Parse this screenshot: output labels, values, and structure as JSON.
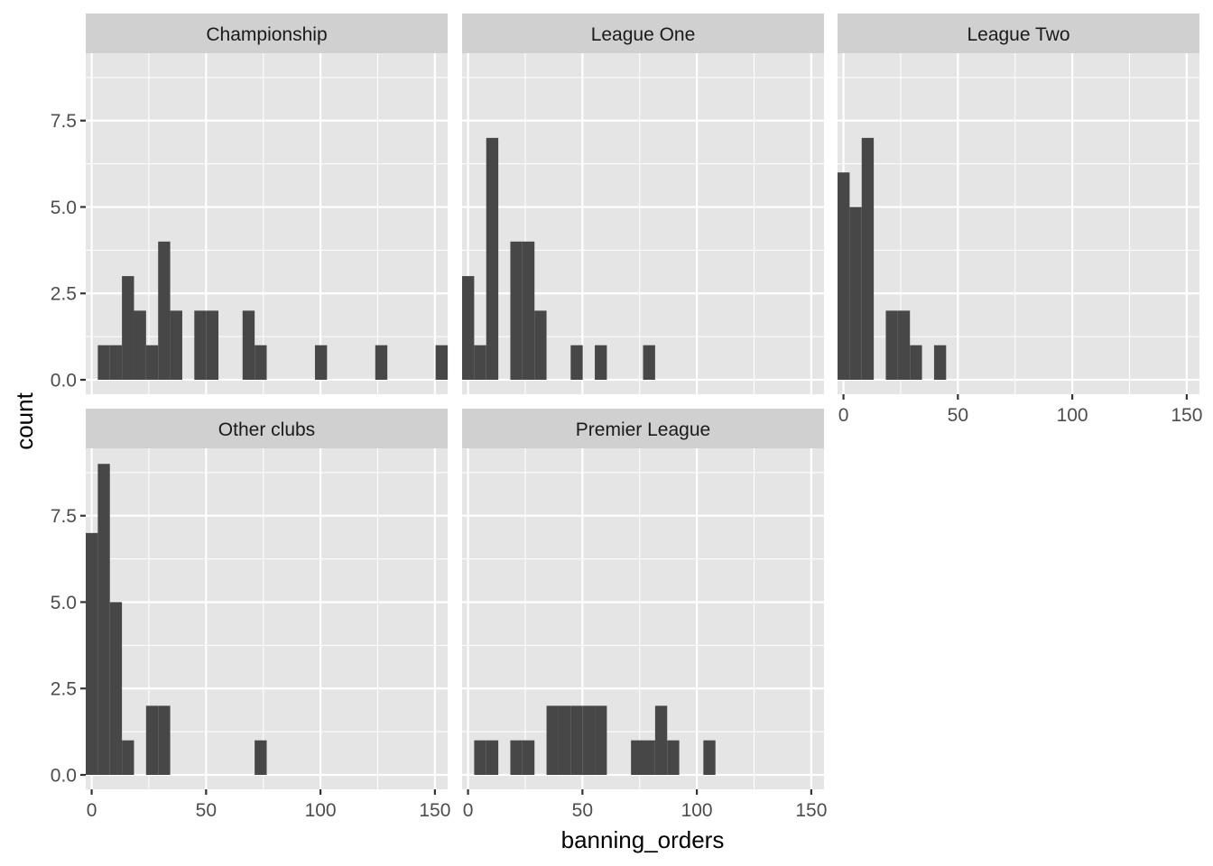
{
  "chart_data": {
    "type": "bar",
    "subtype": "faceted-histogram",
    "xlabel": "banning_orders",
    "ylabel": "count",
    "xlim": [
      -2.59,
      155.57
    ],
    "ylim": [
      0,
      9.45
    ],
    "x_ticks": [
      0,
      50,
      100,
      150
    ],
    "x_tick_labels": [
      "0",
      "50",
      "100",
      "150"
    ],
    "y_ticks": [
      0,
      2.5,
      5,
      7.5
    ],
    "y_tick_labels": [
      "0.0",
      "2.5",
      "5.0",
      "7.5"
    ],
    "bins": 30,
    "bin_start": -2.586,
    "bin_width": 5.272,
    "grid": true,
    "facets": [
      {
        "name": "Championship",
        "counts": [
          0,
          1,
          1,
          3,
          2,
          1,
          4,
          2,
          0,
          2,
          2,
          0,
          0,
          2,
          1,
          0,
          0,
          0,
          0,
          1,
          0,
          0,
          0,
          0,
          1,
          0,
          0,
          0,
          0,
          1
        ]
      },
      {
        "name": "League One",
        "counts": [
          3,
          1,
          7,
          0,
          4,
          4,
          2,
          0,
          0,
          1,
          0,
          1,
          0,
          0,
          0,
          1,
          0,
          0,
          0,
          0,
          0,
          0,
          0,
          0,
          0,
          0,
          0,
          0,
          0,
          0
        ]
      },
      {
        "name": "League Two",
        "counts": [
          6,
          5,
          7,
          0,
          2,
          2,
          1,
          0,
          1,
          0,
          0,
          0,
          0,
          0,
          0,
          0,
          0,
          0,
          0,
          0,
          0,
          0,
          0,
          0,
          0,
          0,
          0,
          0,
          0,
          0
        ]
      },
      {
        "name": "Other clubs",
        "counts": [
          7,
          9,
          5,
          1,
          0,
          2,
          2,
          0,
          0,
          0,
          0,
          0,
          0,
          0,
          1,
          0,
          0,
          0,
          0,
          0,
          0,
          0,
          0,
          0,
          0,
          0,
          0,
          0,
          0,
          0
        ]
      },
      {
        "name": "Premier League",
        "counts": [
          0,
          1,
          1,
          0,
          1,
          1,
          0,
          2,
          2,
          2,
          2,
          2,
          0,
          0,
          1,
          1,
          2,
          1,
          0,
          0,
          1,
          0,
          0,
          0,
          0,
          0,
          0,
          0,
          0,
          0
        ]
      }
    ],
    "colors": {
      "bar": "#474747",
      "panel_bg": "#e5e5e5",
      "strip_bg": "#d0d0d0",
      "grid": "#ffffff"
    }
  }
}
